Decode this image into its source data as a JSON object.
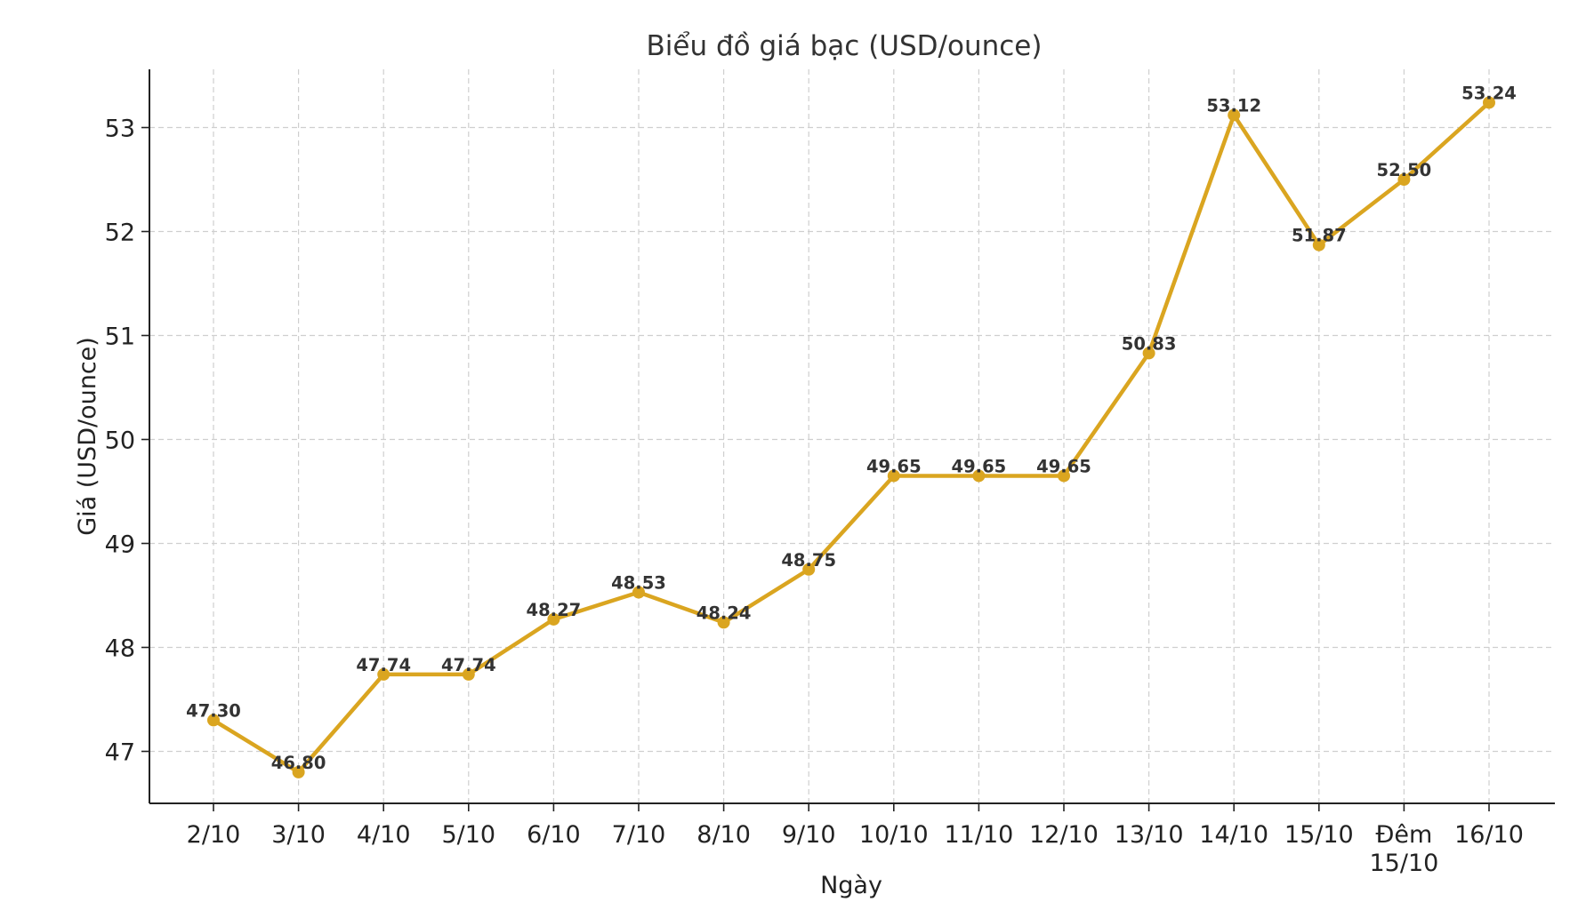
{
  "chart_data": {
    "type": "line",
    "title": "Biểu đồ giá bạc (USD/ounce)",
    "xlabel": "Ngày",
    "ylabel": "Giá (USD/ounce)",
    "categories": [
      "2/10",
      "3/10",
      "4/10",
      "5/10",
      "6/10",
      "7/10",
      "8/10",
      "9/10",
      "10/10",
      "11/10",
      "12/10",
      "13/10",
      "14/10",
      "15/10",
      "Đêm\n15/10",
      "16/10"
    ],
    "series": [
      {
        "values": [
          47.3,
          46.8,
          47.74,
          47.74,
          48.27,
          48.53,
          48.24,
          48.75,
          49.65,
          49.65,
          49.65,
          50.83,
          53.12,
          51.87,
          52.5,
          53.24
        ],
        "color": "#DAA520"
      }
    ],
    "data_labels": [
      "47.30",
      "46.80",
      "47.74",
      "47.74",
      "48.27",
      "48.53",
      "48.24",
      "48.75",
      "49.65",
      "49.65",
      "49.65",
      "50.83",
      "53.12",
      "51.87",
      "52.50",
      "53.24"
    ],
    "ylim": [
      46.5,
      53.56
    ],
    "yticks": [
      47,
      48,
      49,
      50,
      51,
      52,
      53
    ],
    "grid": true,
    "legend": "none"
  }
}
